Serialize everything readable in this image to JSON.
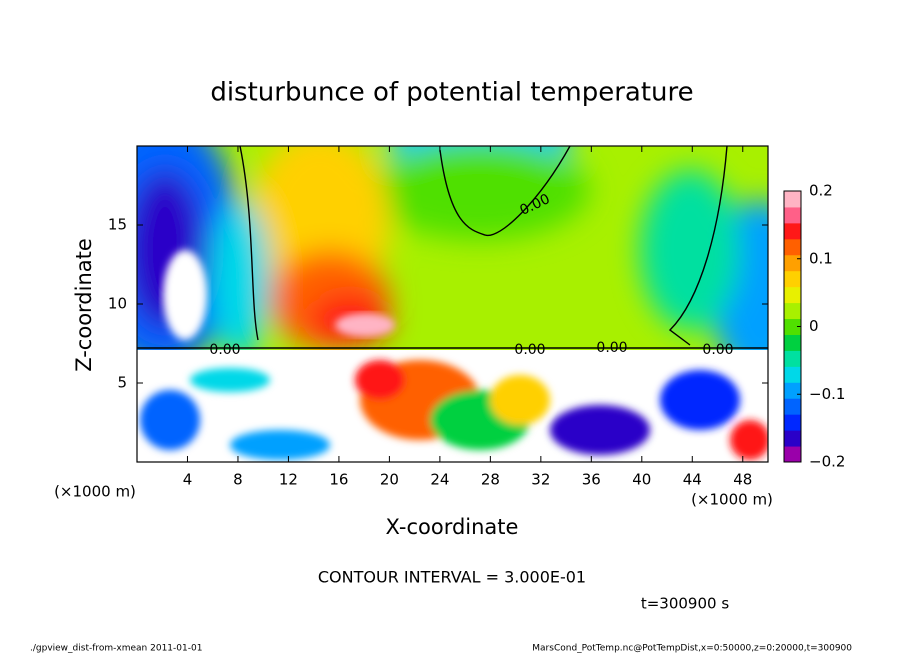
{
  "chart_data": {
    "type": "contour",
    "title": "disturbunce of potential temperature",
    "xlabel": "X-coordinate",
    "ylabel": "Z-coordinate",
    "x_unit_left": "(×1000 m)",
    "x_unit_right": "(×1000 m)",
    "xlim": [
      0,
      50
    ],
    "xticks": [
      4,
      8,
      12,
      16,
      20,
      24,
      28,
      32,
      36,
      40,
      44,
      48
    ],
    "ylim": [
      0,
      20
    ],
    "yticks": [
      5,
      10,
      15
    ],
    "clim": [
      -0.2,
      0.2
    ],
    "cticks": [
      {
        "value": -0.2,
        "label": "−0.2"
      },
      {
        "value": -0.1,
        "label": "−0.1"
      },
      0,
      0.1,
      0.2
    ],
    "colors": [
      "#9a00aa",
      "#2a00c8",
      "#0028ff",
      "#0064ff",
      "#00a0ff",
      "#00d8e8",
      "#00e0a0",
      "#00d040",
      "#50e000",
      "#a8f000",
      "#e8f000",
      "#ffd000",
      "#ffa000",
      "#ff6000",
      "#ff1818",
      "#ff6088",
      "#ffb4c4"
    ],
    "contour_labels": [
      "0.00",
      "0.00",
      "0.00",
      "0.00",
      "0.00"
    ],
    "contour_interval": "CONTOUR INTERVAL = 3.000E-01",
    "time_label": "t=300900 s",
    "footer_left": "./gpview_dist-from-xmean  2011-01-01",
    "footer_right": "MarsCond_PotTemp.nc@PotTempDist,x=0:50000,z=0:20000,t=300900"
  }
}
